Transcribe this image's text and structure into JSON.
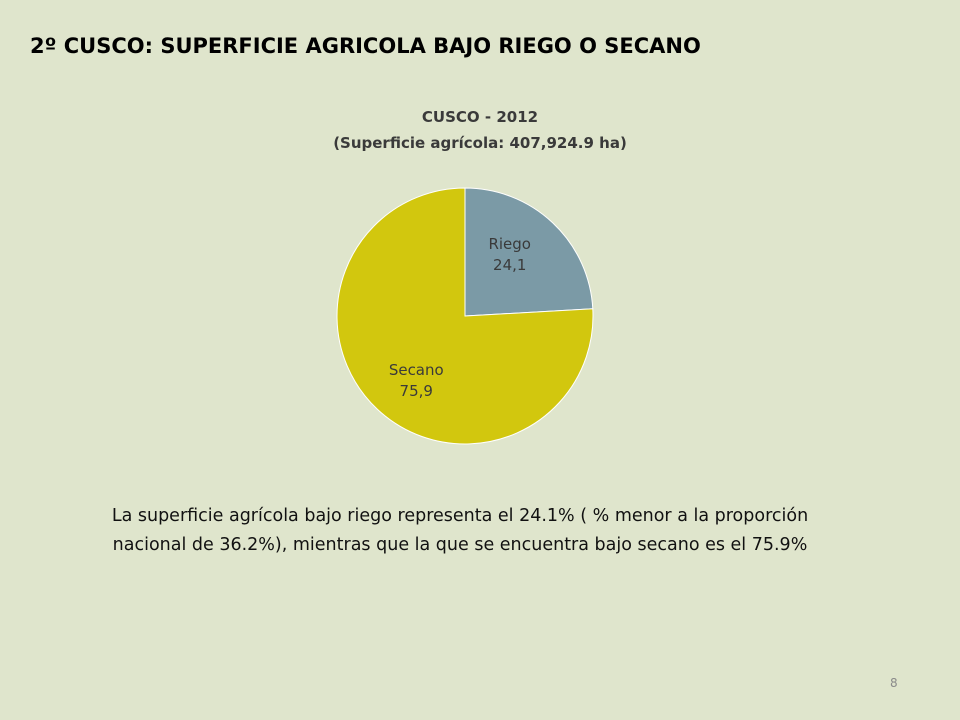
{
  "slide": {
    "title": "2º CUSCO:  SUPERFICIE AGRICOLA BAJO RIEGO O SECANO",
    "description": "La superficie agrícola bajo riego representa el 24.1% ( % menor a la proporción nacional de 36.2%),  mientras que la que se encuentra bajo secano es el  75.9%",
    "page_number": "8"
  },
  "chart_data": {
    "type": "pie",
    "title": "CUSCO - 2012",
    "subtitle": "(Superficie agrícola: 407,924.9 ha)",
    "slices": [
      {
        "label": "Riego",
        "value": 24.1,
        "value_label": "24,1",
        "color": "#7b9aa6"
      },
      {
        "label": "Secano",
        "value": 75.9,
        "value_label": "75,9",
        "color": "#d2c70e"
      }
    ],
    "start_angle_deg": 0,
    "direction": "clockwise"
  }
}
